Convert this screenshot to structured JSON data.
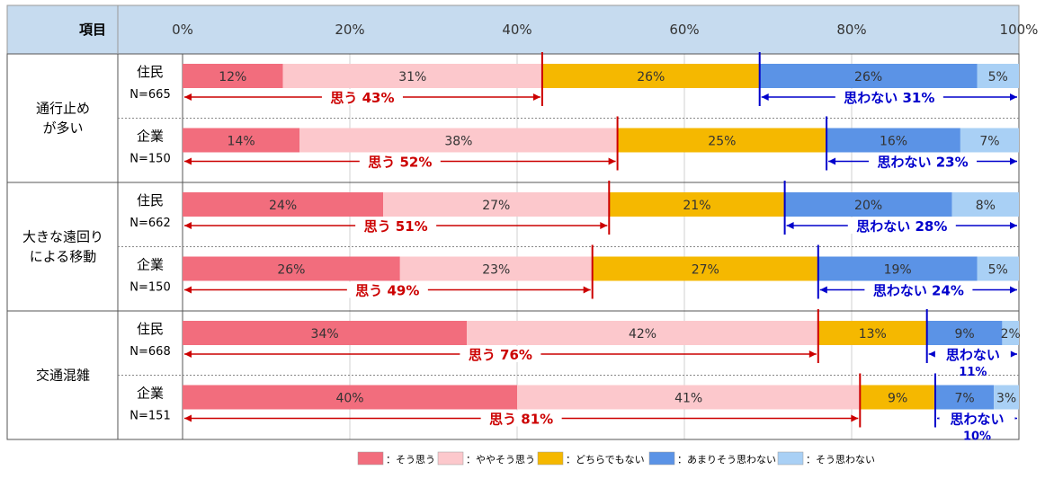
{
  "colors": {
    "header_bg": "#c6dbef",
    "s1": "#f26d7d",
    "s2": "#fcc8cc",
    "s3": "#f5b800",
    "s4": "#5b93e6",
    "s5": "#a9d0f5",
    "red": "#cc0000",
    "blue": "#0000cc"
  },
  "header": {
    "item_label": "項目"
  },
  "legend": [
    {
      "label": "：そう思う",
      "color_key": "s1"
    },
    {
      "label": "：ややそう思う",
      "color_key": "s2"
    },
    {
      "label": "：どちらでもない",
      "color_key": "s3"
    },
    {
      "label": "：あまりそう思わない",
      "color_key": "s4"
    },
    {
      "label": "：そう思わない",
      "color_key": "s5"
    }
  ],
  "chart_data": {
    "type": "bar",
    "orientation": "horizontal",
    "stacked": true,
    "x_ticks": [
      "0%",
      "20%",
      "40%",
      "60%",
      "80%",
      "100%"
    ],
    "xlim": [
      0,
      100
    ],
    "series_names": [
      "そう思う",
      "ややそう思う",
      "どちらでもない",
      "あまりそう思わない",
      "そう思わない"
    ],
    "groups": [
      {
        "label": "通行止め\nが多い",
        "rows": [
          {
            "respondent": "住民",
            "n": "N=665",
            "values": [
              12,
              31,
              26,
              26,
              5
            ],
            "labels": [
              "12%",
              "31%",
              "26%",
              "26%",
              "5%"
            ],
            "agree_label": "思う 43%",
            "agree_end": 43,
            "disagree_label": "思わない 31%",
            "disagree_start": 69
          },
          {
            "respondent": "企業",
            "n": "N=150",
            "values": [
              14,
              38,
              25,
              16,
              7
            ],
            "labels": [
              "14%",
              "38%",
              "25%",
              "16%",
              "7%"
            ],
            "agree_label": "思う 52%",
            "agree_end": 52,
            "disagree_label": "思わない 23%",
            "disagree_start": 77
          }
        ]
      },
      {
        "label": "大きな遠回り\nによる移動",
        "rows": [
          {
            "respondent": "住民",
            "n": "N=662",
            "values": [
              24,
              27,
              21,
              20,
              8
            ],
            "labels": [
              "24%",
              "27%",
              "21%",
              "20%",
              "8%"
            ],
            "agree_label": "思う 51%",
            "agree_end": 51,
            "disagree_label": "思わない 28%",
            "disagree_start": 72
          },
          {
            "respondent": "企業",
            "n": "N=150",
            "values": [
              26,
              23,
              27,
              19,
              5
            ],
            "labels": [
              "26%",
              "23%",
              "27%",
              "19%",
              "5%"
            ],
            "agree_label": "思う 49%",
            "agree_end": 49,
            "disagree_label": "思わない 24%",
            "disagree_start": 76
          }
        ]
      },
      {
        "label": "交通混雑",
        "rows": [
          {
            "respondent": "住民",
            "n": "N=668",
            "values": [
              34,
              42,
              13,
              9,
              2
            ],
            "labels": [
              "34%",
              "42%",
              "13%",
              "9%",
              "2%"
            ],
            "agree_label": "思う 76%",
            "agree_end": 76,
            "disagree_label": "思わない\n11%",
            "disagree_start": 89
          },
          {
            "respondent": "企業",
            "n": "N=151",
            "values": [
              40,
              41,
              9,
              7,
              3
            ],
            "labels": [
              "40%",
              "41%",
              "9%",
              "7%",
              "3%"
            ],
            "agree_label": "思う 81%",
            "agree_end": 81,
            "disagree_label": "思わない\n10%",
            "disagree_start": 90
          }
        ]
      }
    ]
  }
}
